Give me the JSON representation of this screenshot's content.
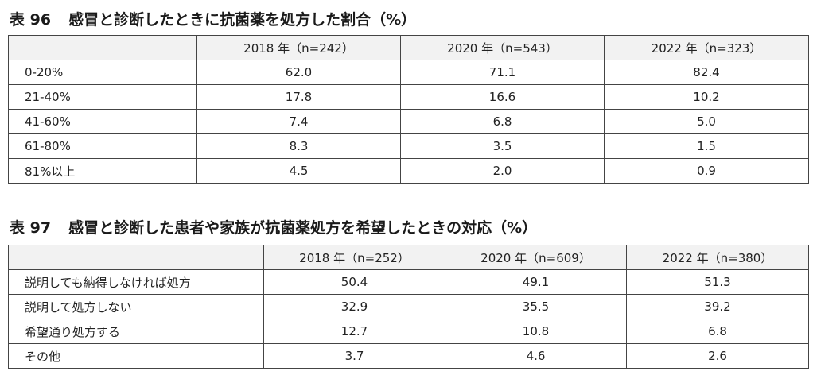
{
  "table96": {
    "number": "表 96",
    "title": "感冒と診断したときに抗菌薬を処方した割合（%）",
    "headers": [
      "",
      "2018 年（n=242）",
      "2020 年（n=543）",
      "2022 年（n=323）"
    ],
    "rows": [
      {
        "label": "0-20%",
        "values": [
          "62.0",
          "71.1",
          "82.4"
        ]
      },
      {
        "label": "21-40%",
        "values": [
          "17.8",
          "16.6",
          "10.2"
        ]
      },
      {
        "label": "41-60%",
        "values": [
          "7.4",
          "6.8",
          "5.0"
        ]
      },
      {
        "label": "61-80%",
        "values": [
          "8.3",
          "3.5",
          "1.5"
        ]
      },
      {
        "label": "81%以上",
        "values": [
          "4.5",
          "2.0",
          "0.9"
        ]
      }
    ]
  },
  "table97": {
    "number": "表 97",
    "title": "感冒と診断した患者や家族が抗菌薬処方を希望したときの対応（%）",
    "headers": [
      "",
      "2018 年（n=252）",
      "2020 年（n=609）",
      "2022 年（n=380）"
    ],
    "rows": [
      {
        "label": "説明しても納得しなければ処方",
        "values": [
          "50.4",
          "49.1",
          "51.3"
        ]
      },
      {
        "label": "説明して処方しない",
        "values": [
          "32.9",
          "35.5",
          "39.2"
        ]
      },
      {
        "label": "希望通り処方する",
        "values": [
          "12.7",
          "10.8",
          "6.8"
        ]
      },
      {
        "label": "その他",
        "values": [
          "3.7",
          "4.6",
          "2.6"
        ]
      }
    ]
  }
}
